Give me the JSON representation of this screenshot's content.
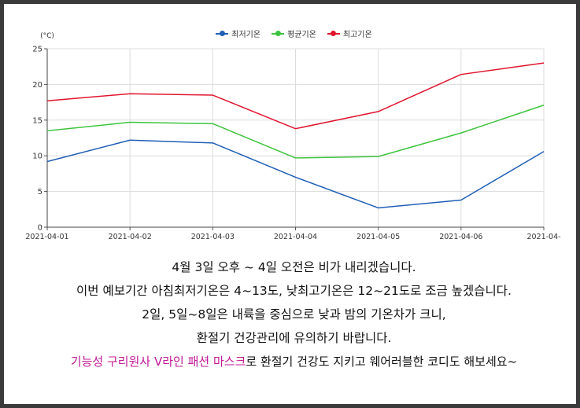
{
  "chart_data": {
    "type": "line",
    "ylabel": "(°C)",
    "ylim": [
      0,
      25
    ],
    "yticks": [
      0,
      5,
      10,
      15,
      20,
      25
    ],
    "grid": true,
    "legend_position": "top-center",
    "x": [
      "2021-04-01",
      "2021-04-02",
      "2021-04-03",
      "2021-04-04",
      "2021-04-05",
      "2021-04-06",
      "2021-04-"
    ],
    "series": [
      {
        "name": "최저기온",
        "color": "#1f5fb5",
        "values": [
          9.2,
          12.2,
          11.8,
          7.0,
          2.7,
          3.8,
          10.6
        ]
      },
      {
        "name": "평균기온",
        "color": "#3ec43e",
        "values": [
          13.5,
          14.7,
          14.5,
          9.7,
          9.9,
          13.2,
          17.1
        ]
      },
      {
        "name": "최고기온",
        "color": "#e0152e",
        "values": [
          17.7,
          18.7,
          18.5,
          13.8,
          16.2,
          21.4,
          23.0
        ]
      }
    ]
  },
  "notes": {
    "line1": "4월 3일 오후 ~ 4일 오전은 비가 내리겠습니다.",
    "line2": "이번 예보기간 아침최저기온은 4~13도, 낮최고기온은 12~21도로 조금 높겠습니다.",
    "line3": "2일, 5일~8일은 내륙을 중심으로 낮과 밤의 기온차가 크니,",
    "line4": "환절기 건강관리에 유의하기 바랍니다.",
    "promo_highlight": "기능성 구리원사 V라인 패션 마스크",
    "promo_rest": "로 환절기 건강도 지키고 웨어러블한 코디도 해보세요~"
  },
  "colors": {
    "highlight": "#c21796",
    "frame": "#3a3a3a"
  }
}
